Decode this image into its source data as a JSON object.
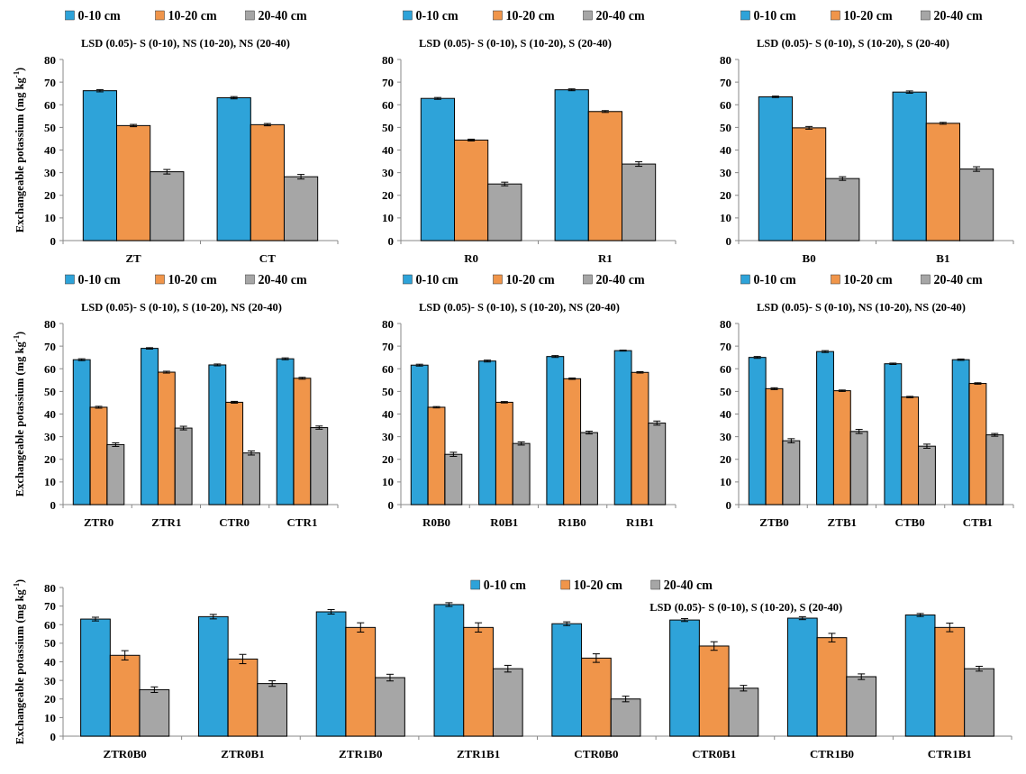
{
  "chart_data": [
    {
      "type": "bar",
      "ylabel": "Exchangeable potassium (mg kg$^{-1}$)",
      "annotations": [
        "LSD (0.05)- S (0-10), NS (10-20), NS (20-40)"
      ],
      "legend": "top",
      "ylim": [
        0,
        80
      ],
      "yticks": [
        0,
        10,
        20,
        30,
        40,
        50,
        60,
        70,
        80
      ],
      "categories": [
        "ZT",
        "CT"
      ],
      "series": [
        {
          "name": "0-10 cm",
          "color": "#2ea3d9",
          "values": [
            66.2,
            63.1
          ],
          "errors": [
            0.5,
            0.5
          ]
        },
        {
          "name": "10-20 cm",
          "color": "#f0954a",
          "values": [
            50.8,
            51.2
          ],
          "errors": [
            0.5,
            0.5
          ]
        },
        {
          "name": "20-40 cm",
          "color": "#a6a6a6",
          "values": [
            30.4,
            28.2
          ],
          "errors": [
            1,
            1
          ]
        }
      ]
    },
    {
      "type": "bar",
      "annotations": [
        "LSD (0.05)- S (0-10), S (10-20), S (20-40)"
      ],
      "legend": "top",
      "ylim": [
        0,
        80
      ],
      "yticks": [
        0,
        10,
        20,
        30,
        40,
        50,
        60,
        70,
        80
      ],
      "categories": [
        "R0",
        "R1"
      ],
      "series": [
        {
          "name": "0-10 cm",
          "color": "#2ea3d9",
          "values": [
            62.8,
            66.6
          ],
          "errors": [
            0.4,
            0.4
          ]
        },
        {
          "name": "10-20 cm",
          "color": "#f0954a",
          "values": [
            44.4,
            57
          ],
          "errors": [
            0.4,
            0.4
          ]
        },
        {
          "name": "20-40 cm",
          "color": "#a6a6a6",
          "values": [
            25,
            33.8
          ],
          "errors": [
            0.8,
            1
          ]
        }
      ]
    },
    {
      "type": "bar",
      "annotations": [
        "LSD (0.05)- S (0-10), S (10-20), S (20-40)"
      ],
      "legend": "top",
      "ylim": [
        0,
        80
      ],
      "yticks": [
        0,
        10,
        20,
        30,
        40,
        50,
        60,
        70,
        80
      ],
      "categories": [
        "B0",
        "B1"
      ],
      "series": [
        {
          "name": "0-10 cm",
          "color": "#2ea3d9",
          "values": [
            63.5,
            65.6
          ],
          "errors": [
            0.3,
            0.5
          ]
        },
        {
          "name": "10-20 cm",
          "color": "#f0954a",
          "values": [
            49.8,
            51.8
          ],
          "errors": [
            0.6,
            0.4
          ]
        },
        {
          "name": "20-40 cm",
          "color": "#a6a6a6",
          "values": [
            27.4,
            31.6
          ],
          "errors": [
            0.8,
            1
          ]
        }
      ]
    },
    {
      "type": "bar",
      "ylabel": "Exchangeable potassium (mg kg$^{-1}$)",
      "annotations": [
        "LSD (0.05)- S (0-10), S (10-20), NS (20-40)"
      ],
      "legend": "top",
      "ylim": [
        0,
        80
      ],
      "yticks": [
        0,
        10,
        20,
        30,
        40,
        50,
        60,
        70,
        80
      ],
      "categories": [
        "ZTR0",
        "ZTR1",
        "CTR0",
        "CTR1"
      ],
      "series": [
        {
          "name": "0-10 cm",
          "color": "#2ea3d9",
          "values": [
            64,
            69,
            61.7,
            64.4
          ],
          "errors": [
            0.4,
            0.3,
            0.4,
            0.4
          ]
        },
        {
          "name": "10-20 cm",
          "color": "#f0954a",
          "values": [
            43,
            58.5,
            45.2,
            55.8
          ],
          "errors": [
            0.4,
            0.4,
            0.4,
            0.4
          ]
        },
        {
          "name": "20-40 cm",
          "color": "#a6a6a6",
          "values": [
            26.5,
            33.8,
            22.8,
            34
          ],
          "errors": [
            0.8,
            0.8,
            0.9,
            0.7
          ]
        }
      ]
    },
    {
      "type": "bar",
      "annotations": [
        "LSD (0.05)- S (0-10), S (10-20), NS (20-40)"
      ],
      "legend": "top",
      "ylim": [
        0,
        80
      ],
      "yticks": [
        0,
        10,
        20,
        30,
        40,
        50,
        60,
        70,
        80
      ],
      "categories": [
        "R0B0",
        "R0B1",
        "R1B0",
        "R1B1"
      ],
      "series": [
        {
          "name": "0-10 cm",
          "color": "#2ea3d9",
          "values": [
            61.6,
            63.4,
            65.4,
            68
          ],
          "errors": [
            0.4,
            0.4,
            0.4,
            0.2
          ]
        },
        {
          "name": "10-20 cm",
          "color": "#f0954a",
          "values": [
            43,
            45.2,
            55.6,
            58.4
          ],
          "errors": [
            0.3,
            0.3,
            0.3,
            0.3
          ]
        },
        {
          "name": "20-40 cm",
          "color": "#a6a6a6",
          "values": [
            22.2,
            27,
            31.8,
            36
          ],
          "errors": [
            0.9,
            0.7,
            0.6,
            0.9
          ]
        }
      ]
    },
    {
      "type": "bar",
      "annotations": [
        "LSD (0.05)- S (0-10), NS (10-20), NS (20-40)"
      ],
      "legend": "top",
      "ylim": [
        0,
        80
      ],
      "yticks": [
        0,
        10,
        20,
        30,
        40,
        50,
        60,
        70,
        80
      ],
      "categories": [
        "ZTB0",
        "ZTB1",
        "CTB0",
        "CTB1"
      ],
      "series": [
        {
          "name": "0-10 cm",
          "color": "#2ea3d9",
          "values": [
            65,
            67.6,
            62.2,
            64
          ],
          "errors": [
            0.4,
            0.4,
            0.3,
            0.3
          ]
        },
        {
          "name": "10-20 cm",
          "color": "#f0954a",
          "values": [
            51.2,
            50.3,
            47.5,
            53.5
          ],
          "errors": [
            0.4,
            0.3,
            0.3,
            0.3
          ]
        },
        {
          "name": "20-40 cm",
          "color": "#a6a6a6",
          "values": [
            28.2,
            32.3,
            25.8,
            30.8
          ],
          "errors": [
            0.9,
            0.9,
            0.9,
            0.6
          ]
        }
      ]
    },
    {
      "type": "bar",
      "ylabel": "Exchangeable potassium (mg kg$^{-1}$)",
      "annotations": [
        "LSD (0.05)- S (0-10), S (10-20), S (20-40)"
      ],
      "legend": "top",
      "ylim": [
        0,
        80
      ],
      "yticks": [
        0,
        10,
        20,
        30,
        40,
        50,
        60,
        70,
        80
      ],
      "categories": [
        "ZTR0B0",
        "ZTR0B1",
        "ZTR1B0",
        "ZTR1B1",
        "CTR0B0",
        "CTR0B1",
        "CTR1B0",
        "CTR1B1"
      ],
      "series": [
        {
          "name": "0-10 cm",
          "color": "#2ea3d9",
          "values": [
            63,
            64.3,
            66.9,
            70.8,
            60.5,
            62.5,
            63.5,
            65.2
          ],
          "errors": [
            1,
            1.2,
            1.2,
            1,
            1,
            0.8,
            0.8,
            0.8
          ]
        },
        {
          "name": "10-20 cm",
          "color": "#f0954a",
          "values": [
            43.5,
            41.5,
            58.5,
            58.5,
            42,
            48.5,
            53,
            58.5
          ],
          "errors": [
            2.5,
            2.5,
            2.5,
            2.5,
            2.3,
            2.3,
            2.3,
            2.3
          ]
        },
        {
          "name": "20-40 cm",
          "color": "#a6a6a6",
          "values": [
            25,
            28.3,
            31.5,
            36.3,
            20,
            25.8,
            32,
            36.3
          ],
          "errors": [
            1.5,
            1.5,
            1.8,
            1.8,
            1.5,
            1.5,
            1.5,
            1.3
          ]
        }
      ]
    }
  ]
}
